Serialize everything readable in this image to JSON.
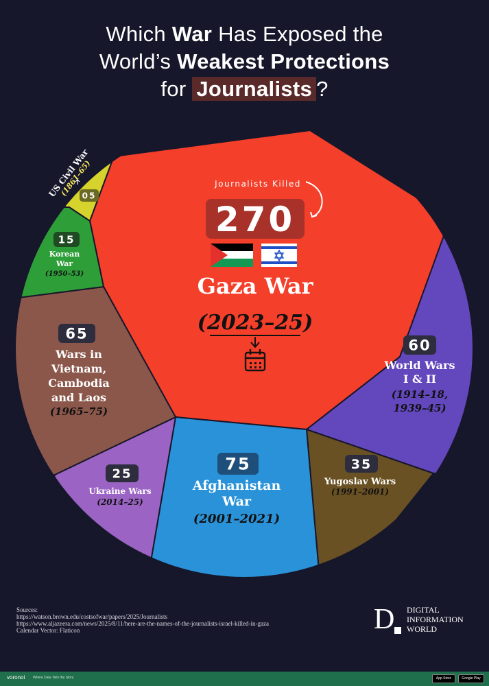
{
  "title": {
    "line1_a": "Which ",
    "line1_b": "War",
    "line1_c": " Has Exposed the",
    "line2_a": "World’s ",
    "line2_b": "Weakest Protections",
    "line3_a": "for ",
    "line3_b": "Journalists",
    "line3_c": "?"
  },
  "chart_data": {
    "type": "pie",
    "title": "Which War Has Exposed the World’s Weakest Protections for Journalists?",
    "center_label": "Journalists Killed",
    "slices": [
      {
        "name": "Gaza War",
        "period": "(2023–25)",
        "value": 270,
        "value_label": "270",
        "color": "#f43f2a"
      },
      {
        "name": "World Wars I & II",
        "period": "(1914–18, 1939–45)",
        "value": 60,
        "value_label": "60",
        "color": "#6247bd"
      },
      {
        "name": "Yugoslav Wars",
        "period": "(1991–2001)",
        "value": 35,
        "value_label": "35",
        "color": "#6a5123"
      },
      {
        "name": "Afghanistan War",
        "period": "(2001–2021)",
        "value": 75,
        "value_label": "75",
        "color": "#2a92d8"
      },
      {
        "name": "Ukraine Wars",
        "period": "(2014–25)",
        "value": 25,
        "value_label": "25",
        "color": "#9b64c4"
      },
      {
        "name": "Wars in Vietnam, Cambodia and Laos",
        "period": "(1965–75)",
        "value": 65,
        "value_label": "65",
        "color": "#8c574b"
      },
      {
        "name": "Korean War",
        "period": "(1950–53)",
        "value": 15,
        "value_label": "15",
        "color": "#2e9e38"
      },
      {
        "name": "US Civil War",
        "period": "(1861–65)",
        "value": 5,
        "value_label": "05",
        "color": "#d6d32c"
      }
    ],
    "colors": {
      "badge_red": "#a8322a",
      "badge_dark": "#2d2d3d",
      "period_yellow": "#f2e35a"
    }
  },
  "icons": {
    "flag_left": "palestine-flag-icon",
    "flag_right": "israel-flag-icon",
    "calendar": "calendar-icon"
  },
  "sources": {
    "heading": "Sources:",
    "lines": [
      "https://watson.brown.edu/costsofwar/papers/2025/Journalists",
      "https://www.aljazeera.com/news/2025/8/11/here-are-the-names-of-the-journalists-israel-killed-in-gaza",
      "Calendar Vector: Flaticon"
    ]
  },
  "brand": {
    "letter": "D",
    "line1": "DIGITAL",
    "line2": "INFORMATION",
    "line3": "WORLD"
  },
  "footer": {
    "logo": "voronoi",
    "tagline": "Where Data Tells the Story",
    "app_store": "App Store",
    "google_play": "Google Play"
  }
}
